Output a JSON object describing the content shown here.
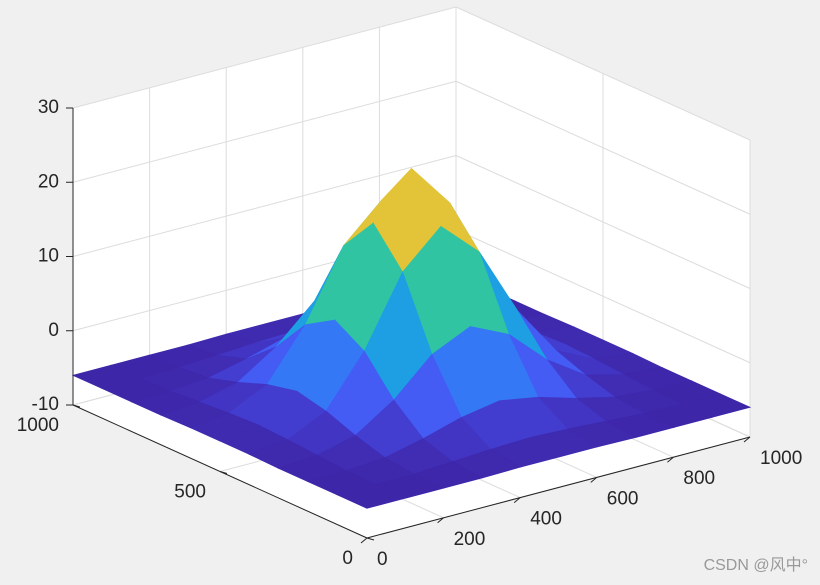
{
  "chart_data": {
    "type": "surface",
    "x": [
      0,
      100,
      200,
      300,
      400,
      500,
      600,
      700,
      800,
      900,
      1000
    ],
    "y": [
      0,
      100,
      200,
      300,
      400,
      500,
      600,
      700,
      800,
      900,
      1000
    ],
    "z": [
      [
        -6,
        -6,
        -6,
        -6,
        -5.9,
        -5.9,
        -5.9,
        -6,
        -6,
        -6,
        -6
      ],
      [
        -6,
        -6,
        -5.9,
        -5.6,
        -5.3,
        -5.1,
        -5.3,
        -5.6,
        -5.9,
        -6,
        -6
      ],
      [
        -6,
        -5.9,
        -5.5,
        -4.3,
        -2.8,
        -1.9,
        -2.8,
        -4.3,
        -5.5,
        -5.9,
        -6
      ],
      [
        -6,
        -5.6,
        -4.3,
        -0.9,
        3.9,
        6.3,
        3.9,
        -0.9,
        -4.3,
        -5.6,
        -6
      ],
      [
        -5.9,
        -5.3,
        -2.8,
        3.9,
        13.2,
        18.0,
        13.2,
        3.9,
        -2.8,
        -5.3,
        -5.9
      ],
      [
        -5.9,
        -5.1,
        -1.9,
        6.3,
        18.0,
        24,
        18.0,
        6.3,
        -1.9,
        -5.1,
        -5.9
      ],
      [
        -5.9,
        -5.3,
        -2.8,
        3.9,
        13.2,
        18.0,
        13.2,
        3.9,
        -2.8,
        -5.3,
        -5.9
      ],
      [
        -6,
        -5.6,
        -4.3,
        -0.9,
        3.9,
        6.3,
        3.9,
        -0.9,
        -4.3,
        -5.6,
        -6
      ],
      [
        -6,
        -5.9,
        -5.5,
        -4.3,
        -2.8,
        -1.9,
        -2.8,
        -4.3,
        -5.5,
        -5.9,
        -6
      ],
      [
        -6,
        -6,
        -5.9,
        -5.6,
        -5.3,
        -5.1,
        -5.3,
        -5.6,
        -5.9,
        -6,
        -6
      ],
      [
        -6,
        -6,
        -6,
        -6,
        -5.9,
        -5.9,
        -5.9,
        -6,
        -6,
        -6,
        -6
      ]
    ],
    "xlim": [
      0,
      1000
    ],
    "ylim": [
      0,
      1000
    ],
    "zlim": [
      -10,
      30
    ],
    "xticks": [
      0,
      200,
      400,
      600,
      800,
      1000
    ],
    "yticks": [
      0,
      500,
      1000
    ],
    "zticks": [
      -10,
      0,
      10,
      20,
      30
    ],
    "colormap": "parula",
    "grid": true
  },
  "watermark": "CSDN @风中°"
}
